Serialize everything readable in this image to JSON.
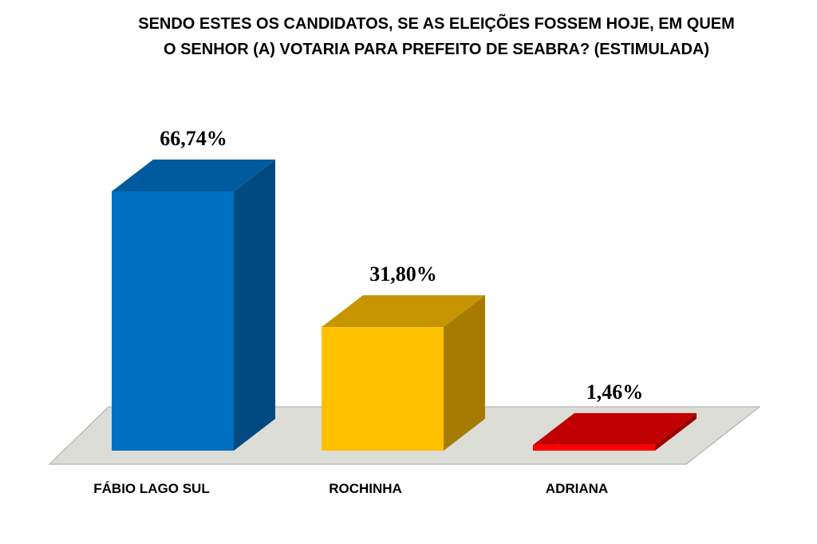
{
  "chart_data": {
    "type": "bar",
    "title_lines": [
      "SENDO ESTES OS  CANDIDATOS, SE AS ELEIÇÕES FOSSEM HOJE, EM QUEM",
      "O SENHOR (A) VOTARIA PARA PREFEITO DE SEABRA? (ESTIMULADA)"
    ],
    "categories": [
      "FÁBIO LAGO SUL",
      "ROCHINHA",
      "ADRIANA"
    ],
    "values": [
      66.74,
      31.8,
      1.46
    ],
    "value_labels": [
      "66,74%",
      "31,80%",
      "1,46%"
    ],
    "colors": [
      {
        "front": "#0070C0",
        "side": "#004A82",
        "top": "#005A9E"
      },
      {
        "front": "#FFC000",
        "side": "#A67C00",
        "top": "#C79500"
      },
      {
        "front": "#FF0000",
        "side": "#9E0000",
        "top": "#C00000"
      }
    ],
    "floor_color": "#DDDDD8",
    "grid": false,
    "legend": "none"
  }
}
